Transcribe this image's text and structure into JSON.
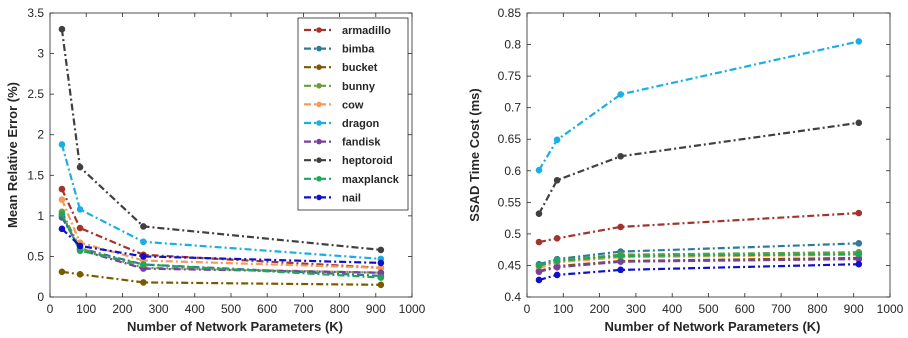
{
  "chart_data": [
    {
      "type": "line",
      "xlabel": "Number of Network Parameters (K)",
      "ylabel": "Mean Relative Error (%)",
      "xlim": [
        0,
        1000
      ],
      "ylim": [
        0,
        3.5
      ],
      "xticks": [
        0,
        100,
        200,
        300,
        400,
        500,
        600,
        700,
        800,
        900,
        1000
      ],
      "yticks": [
        0,
        0.5,
        1,
        1.5,
        2,
        2.5,
        3,
        3.5
      ],
      "ytick_labels": [
        "0",
        "0.5",
        "1",
        "1.5",
        "2",
        "2.5",
        "3",
        "3.5"
      ],
      "grid": false,
      "legend_position": "top-right",
      "x": [
        33,
        83,
        258,
        914
      ],
      "series": [
        {
          "name": "armadillo",
          "color": "#A2342D",
          "values": [
            1.33,
            0.85,
            0.52,
            0.36
          ]
        },
        {
          "name": "bimba",
          "color": "#2E7A9E",
          "values": [
            0.98,
            0.6,
            0.4,
            0.26
          ]
        },
        {
          "name": "bucket",
          "color": "#7A5A00",
          "values": [
            0.31,
            0.28,
            0.18,
            0.15
          ]
        },
        {
          "name": "bunny",
          "color": "#6E9C3C",
          "values": [
            1.05,
            0.6,
            0.36,
            0.3
          ]
        },
        {
          "name": "cow",
          "color": "#F29B5A",
          "values": [
            1.2,
            0.67,
            0.45,
            0.36
          ]
        },
        {
          "name": "dragon",
          "color": "#1AAEE5",
          "values": [
            1.88,
            1.08,
            0.68,
            0.47
          ]
        },
        {
          "name": "fandisk",
          "color": "#7B3FA0",
          "values": [
            1.0,
            0.58,
            0.35,
            0.3
          ]
        },
        {
          "name": "heptoroid",
          "color": "#404040",
          "values": [
            3.3,
            1.6,
            0.87,
            0.58
          ]
        },
        {
          "name": "maxplanck",
          "color": "#1FA85A",
          "values": [
            1.02,
            0.57,
            0.4,
            0.24
          ]
        },
        {
          "name": "nail",
          "color": "#1010CC",
          "values": [
            0.84,
            0.63,
            0.5,
            0.42
          ]
        }
      ]
    },
    {
      "type": "line",
      "xlabel": "Number of Network Parameters (K)",
      "ylabel": "SSAD Time Cost (ms)",
      "xlim": [
        0,
        1000
      ],
      "ylim": [
        0.4,
        0.85
      ],
      "xticks": [
        0,
        100,
        200,
        300,
        400,
        500,
        600,
        700,
        800,
        900,
        1000
      ],
      "yticks": [
        0.4,
        0.45,
        0.5,
        0.55,
        0.6,
        0.65,
        0.7,
        0.75,
        0.8,
        0.85
      ],
      "ytick_labels": [
        "0.4",
        "0.45",
        "0.5",
        "0.55",
        "0.6",
        "0.65",
        "0.7",
        "0.75",
        "0.8",
        "0.85"
      ],
      "grid": false,
      "x": [
        33,
        83,
        258,
        914
      ],
      "series": [
        {
          "color": "#A2342D",
          "values": [
            0.487,
            0.493,
            0.511,
            0.533
          ]
        },
        {
          "color": "#2E7A9E",
          "values": [
            0.452,
            0.46,
            0.472,
            0.485
          ]
        },
        {
          "color": "#7A5A00",
          "values": [
            0.441,
            0.449,
            0.457,
            0.462
          ]
        },
        {
          "color": "#6E9C3C",
          "values": [
            0.449,
            0.458,
            0.467,
            0.471
          ]
        },
        {
          "color": "#F29B5A",
          "values": [
            0.446,
            0.455,
            0.463,
            0.467
          ]
        },
        {
          "color": "#1AAEE5",
          "values": [
            0.601,
            0.649,
            0.721,
            0.805
          ]
        },
        {
          "color": "#7B3FA0",
          "values": [
            0.44,
            0.447,
            0.456,
            0.46
          ]
        },
        {
          "color": "#404040",
          "values": [
            0.532,
            0.585,
            0.623,
            0.676
          ]
        },
        {
          "color": "#1FA85A",
          "values": [
            0.45,
            0.457,
            0.465,
            0.468
          ]
        },
        {
          "color": "#1010CC",
          "values": [
            0.427,
            0.435,
            0.443,
            0.452
          ]
        }
      ]
    }
  ]
}
